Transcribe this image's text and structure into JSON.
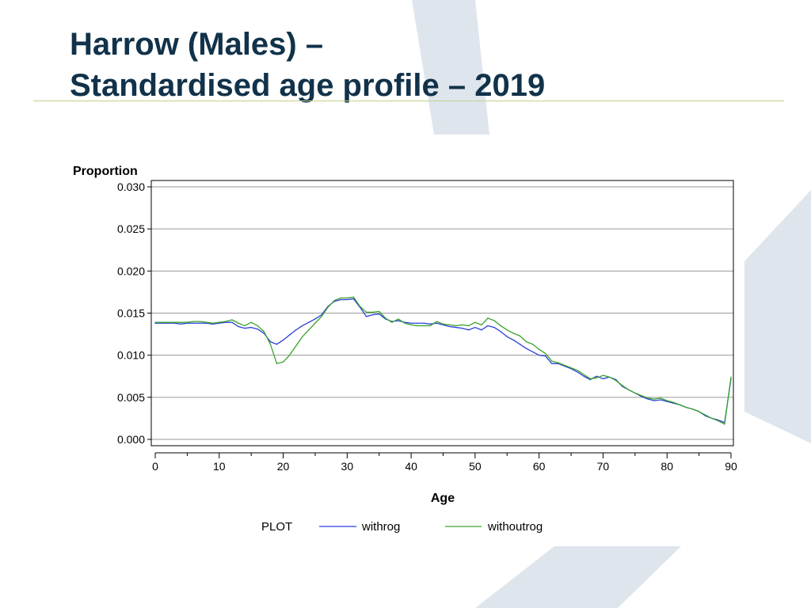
{
  "slide": {
    "title_line1": "Harrow (Males) –",
    "title_line2": "Standardised age profile – 2019"
  },
  "colors": {
    "title": "#11324a",
    "rule": "#c4cf87",
    "decor": "#dfe5ec",
    "withrog": "#2a3fd9",
    "withoutrog": "#3aa22c",
    "grid": "#9a9a9a"
  },
  "chart_data": {
    "type": "line",
    "ylabel": "Proportion",
    "xlabel": "Age",
    "xlim": [
      0,
      90
    ],
    "ylim": [
      0,
      0.03
    ],
    "x_ticks": [
      0,
      10,
      20,
      30,
      40,
      50,
      60,
      70,
      80,
      90
    ],
    "y_ticks": [
      "0.000",
      "0.005",
      "0.010",
      "0.015",
      "0.020",
      "0.025",
      "0.030"
    ],
    "grid": "horizontal",
    "legend": {
      "position": "bottom",
      "title": "PLOT",
      "entries": [
        "withrog",
        "withoutrog"
      ]
    },
    "x": [
      0,
      1,
      2,
      3,
      4,
      5,
      6,
      7,
      8,
      9,
      10,
      11,
      12,
      13,
      14,
      15,
      16,
      17,
      18,
      19,
      20,
      21,
      22,
      23,
      24,
      25,
      26,
      27,
      28,
      29,
      30,
      31,
      32,
      33,
      34,
      35,
      36,
      37,
      38,
      39,
      40,
      41,
      42,
      43,
      44,
      45,
      46,
      47,
      48,
      49,
      50,
      51,
      52,
      53,
      54,
      55,
      56,
      57,
      58,
      59,
      60,
      61,
      62,
      63,
      64,
      65,
      66,
      67,
      68,
      69,
      70,
      71,
      72,
      73,
      74,
      75,
      76,
      77,
      78,
      79,
      80,
      81,
      82,
      83,
      84,
      85,
      86,
      87,
      88,
      89,
      90
    ],
    "series": [
      {
        "name": "withrog",
        "values": [
          0.0138,
          0.0138,
          0.0138,
          0.0138,
          0.0137,
          0.0138,
          0.0138,
          0.0138,
          0.0138,
          0.0137,
          0.0138,
          0.0139,
          0.0139,
          0.0134,
          0.0132,
          0.0133,
          0.0131,
          0.0126,
          0.0116,
          0.0113,
          0.0118,
          0.0124,
          0.013,
          0.0135,
          0.0139,
          0.0143,
          0.0148,
          0.0158,
          0.0164,
          0.0166,
          0.0166,
          0.0167,
          0.0157,
          0.0146,
          0.0148,
          0.0149,
          0.0143,
          0.014,
          0.0141,
          0.0139,
          0.0138,
          0.0138,
          0.0138,
          0.0137,
          0.0138,
          0.0136,
          0.0134,
          0.0133,
          0.0132,
          0.013,
          0.0133,
          0.013,
          0.0135,
          0.0133,
          0.0128,
          0.0122,
          0.0118,
          0.0113,
          0.0108,
          0.0104,
          0.01,
          0.0099,
          0.009,
          0.009,
          0.0087,
          0.0084,
          0.008,
          0.0075,
          0.0071,
          0.0075,
          0.0072,
          0.0074,
          0.0071,
          0.0063,
          0.0059,
          0.0055,
          0.0051,
          0.0048,
          0.0046,
          0.0047,
          0.0045,
          0.0043,
          0.0041,
          0.0038,
          0.0036,
          0.0033,
          0.0028,
          0.0025,
          0.0023,
          0.002,
          0.0072
        ]
      },
      {
        "name": "withoutrog",
        "values": [
          0.0139,
          0.0139,
          0.0139,
          0.0139,
          0.0139,
          0.0139,
          0.014,
          0.014,
          0.0139,
          0.0138,
          0.0139,
          0.014,
          0.0142,
          0.0138,
          0.0135,
          0.0139,
          0.0135,
          0.0128,
          0.0113,
          0.009,
          0.0092,
          0.01,
          0.0111,
          0.0122,
          0.013,
          0.0138,
          0.0146,
          0.0157,
          0.0165,
          0.0168,
          0.0168,
          0.0169,
          0.0158,
          0.0151,
          0.0151,
          0.0152,
          0.0144,
          0.0139,
          0.0143,
          0.0138,
          0.0136,
          0.0135,
          0.0135,
          0.0135,
          0.014,
          0.0137,
          0.0136,
          0.0135,
          0.0136,
          0.0135,
          0.0139,
          0.0136,
          0.0144,
          0.0141,
          0.0135,
          0.013,
          0.0126,
          0.0123,
          0.0116,
          0.0113,
          0.0107,
          0.0102,
          0.0093,
          0.0091,
          0.0088,
          0.0085,
          0.0082,
          0.0077,
          0.0072,
          0.0073,
          0.0076,
          0.0074,
          0.007,
          0.0064,
          0.0059,
          0.0055,
          0.0052,
          0.0049,
          0.0048,
          0.0049,
          0.0046,
          0.0044,
          0.0041,
          0.0038,
          0.0036,
          0.0033,
          0.0029,
          0.0025,
          0.0022,
          0.0018,
          0.0074
        ]
      }
    ]
  }
}
